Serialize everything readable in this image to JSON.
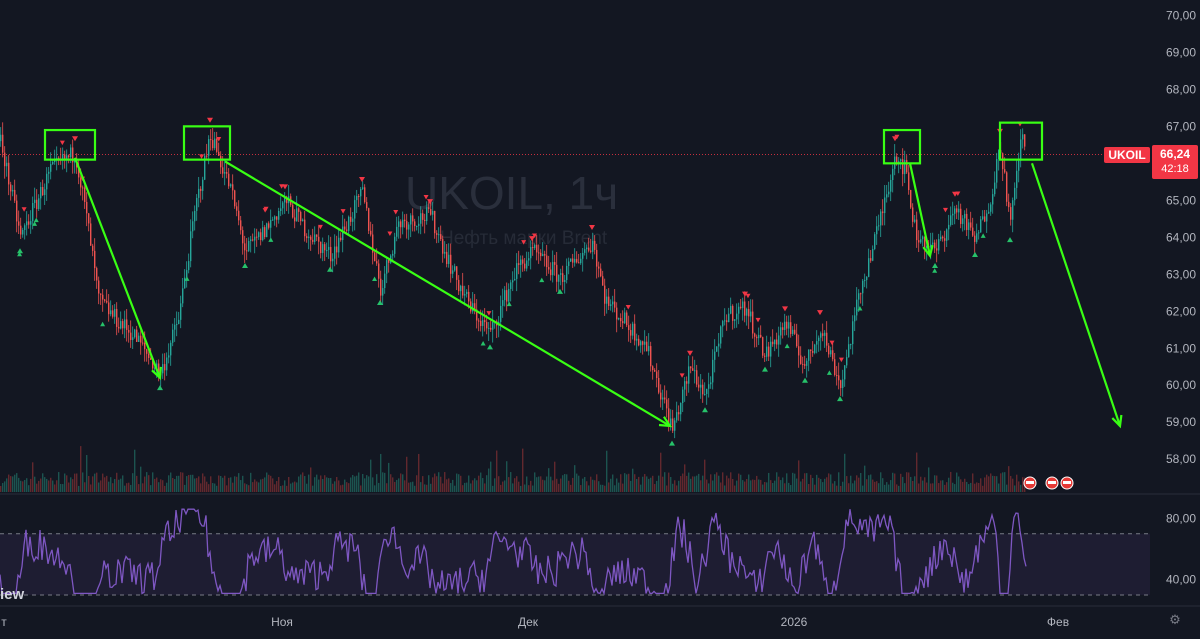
{
  "watermark": {
    "symbol": "UKOIL, 1ч",
    "description": "Нефть марки Brent"
  },
  "brand_fragment": "iew",
  "price_tag": {
    "symbol": "UKOIL",
    "price": "66,24",
    "countdown": "42:18",
    "color": "#f23645"
  },
  "settings_icon": "gear-icon",
  "chart_data": {
    "type": "candlestick",
    "price_axis": {
      "range": [
        57.6,
        70.2
      ],
      "ticks": [
        "70,00",
        "69,00",
        "68,00",
        "67,00",
        "66,00",
        "65,00",
        "64,00",
        "63,00",
        "62,00",
        "61,00",
        "60,00",
        "59,00",
        "58,00"
      ]
    },
    "last_price": 66.24,
    "time_axis": {
      "labels": [
        "т",
        "Ноя",
        "Дек",
        "2026",
        "Фев"
      ]
    },
    "indicator": {
      "type": "line",
      "range": [
        28,
        92
      ],
      "ticks": [
        "80,00",
        "40,00"
      ],
      "upper_band": 70,
      "lower_band": 30,
      "color": "#7e57c2"
    },
    "price_path": [
      [
        0,
        66.6
      ],
      [
        20,
        64.0
      ],
      [
        50,
        65.8
      ],
      [
        75,
        66.3
      ],
      [
        88,
        64.2
      ],
      [
        98,
        62.3
      ],
      [
        115,
        61.8
      ],
      [
        135,
        61.3
      ],
      [
        160,
        60.3
      ],
      [
        178,
        61.8
      ],
      [
        195,
        64.8
      ],
      [
        210,
        66.8
      ],
      [
        230,
        65.3
      ],
      [
        245,
        63.6
      ],
      [
        262,
        64.1
      ],
      [
        285,
        65.0
      ],
      [
        305,
        64.2
      ],
      [
        330,
        63.5
      ],
      [
        362,
        65.2
      ],
      [
        380,
        62.6
      ],
      [
        398,
        64.4
      ],
      [
        430,
        64.6
      ],
      [
        455,
        62.9
      ],
      [
        470,
        62.1
      ],
      [
        490,
        61.4
      ],
      [
        515,
        63.1
      ],
      [
        532,
        63.6
      ],
      [
        560,
        62.9
      ],
      [
        592,
        63.9
      ],
      [
        605,
        62.3
      ],
      [
        625,
        61.7
      ],
      [
        645,
        61.1
      ],
      [
        672,
        58.8
      ],
      [
        690,
        60.5
      ],
      [
        705,
        59.7
      ],
      [
        725,
        61.9
      ],
      [
        745,
        62.1
      ],
      [
        765,
        60.8
      ],
      [
        785,
        61.7
      ],
      [
        805,
        60.5
      ],
      [
        820,
        61.6
      ],
      [
        840,
        60.0
      ],
      [
        860,
        62.6
      ],
      [
        878,
        64.3
      ],
      [
        895,
        66.3
      ],
      [
        905,
        65.8
      ],
      [
        915,
        64.1
      ],
      [
        935,
        63.6
      ],
      [
        955,
        64.8
      ],
      [
        975,
        63.9
      ],
      [
        990,
        65.1
      ],
      [
        1000,
        66.5
      ],
      [
        1010,
        64.3
      ],
      [
        1020,
        66.7
      ],
      [
        1026,
        66.3
      ]
    ],
    "annotations": {
      "top_boxes": [
        {
          "x": [
            45,
            95
          ],
          "y": [
            66.1,
            66.9
          ]
        },
        {
          "x": [
            184,
            230
          ],
          "y": [
            66.1,
            67.0
          ]
        },
        {
          "x": [
            884,
            920
          ],
          "y": [
            66.0,
            66.9
          ]
        },
        {
          "x": [
            1000,
            1042
          ],
          "y": [
            66.1,
            67.1
          ]
        }
      ],
      "arrows": [
        {
          "from": [
            75,
            66.15
          ],
          "to": [
            160,
            60.2
          ]
        },
        {
          "from": [
            225,
            66.05
          ],
          "to": [
            670,
            58.9
          ]
        },
        {
          "from": [
            910,
            66.0
          ],
          "to": [
            930,
            63.5
          ]
        },
        {
          "from": [
            1032,
            66.0
          ],
          "to": [
            1120,
            58.9
          ]
        }
      ],
      "color": "#39ff14"
    }
  }
}
